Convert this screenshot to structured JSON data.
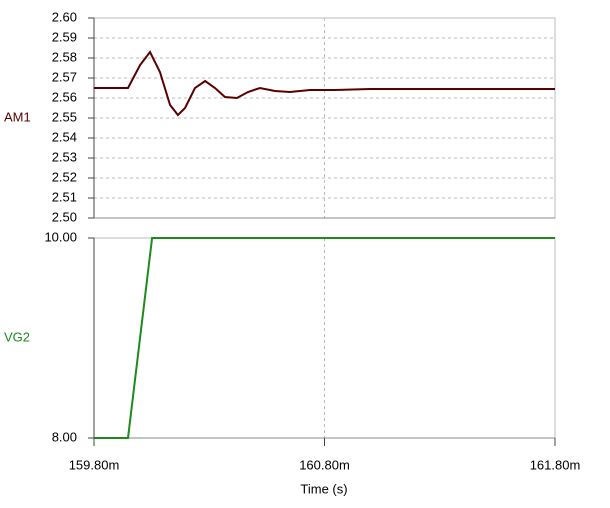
{
  "chart_data": [
    {
      "type": "line",
      "series": [
        {
          "name": "AM1",
          "color": "#5a0000",
          "x": [
            159.8,
            159.9475,
            160.0,
            160.043,
            160.086,
            160.13,
            160.164,
            160.195,
            160.238,
            160.282,
            160.325,
            160.368,
            160.42,
            160.468,
            160.52,
            160.585,
            160.65,
            160.737,
            160.846,
            160.997,
            161.8
          ],
          "values": [
            2.565,
            2.565,
            2.5765,
            2.583,
            2.573,
            2.5565,
            2.5515,
            2.555,
            2.565,
            2.5685,
            2.565,
            2.5605,
            2.56,
            2.563,
            2.565,
            2.5635,
            2.563,
            2.564,
            2.564,
            2.5645,
            2.5645
          ]
        }
      ],
      "xlim": [
        159.8,
        161.8
      ],
      "ylim": [
        2.5,
        2.6
      ],
      "yticks": [
        {
          "value": 2.5,
          "label": "2.50"
        },
        {
          "value": 2.51,
          "label": "2.51"
        },
        {
          "value": 2.52,
          "label": "2.52"
        },
        {
          "value": 2.53,
          "label": "2.53"
        },
        {
          "value": 2.54,
          "label": "2.54"
        },
        {
          "value": 2.55,
          "label": "2.55"
        },
        {
          "value": 2.56,
          "label": "2.56"
        },
        {
          "value": 2.57,
          "label": "2.57"
        },
        {
          "value": 2.58,
          "label": "2.58"
        },
        {
          "value": 2.59,
          "label": "2.59"
        },
        {
          "value": 2.6,
          "label": "2.60"
        }
      ],
      "grid": true
    },
    {
      "type": "line",
      "series": [
        {
          "name": "VG2",
          "color": "#1e8a1e",
          "x": [
            159.8,
            159.9475,
            160.052,
            161.8
          ],
          "values": [
            8,
            8,
            10,
            10
          ]
        }
      ],
      "xlabel": "Time (s)",
      "xlim": [
        159.8,
        161.8
      ],
      "xticks": [
        {
          "value": 159.8,
          "label": "159.80m"
        },
        {
          "value": 160.8,
          "label": "160.80m"
        },
        {
          "value": 161.8,
          "label": "161.80m"
        }
      ],
      "ylim": [
        8,
        10
      ],
      "yticks": [
        {
          "value": 8,
          "label": "8.00"
        },
        {
          "value": 10,
          "label": "10.00"
        }
      ],
      "grid": true
    }
  ]
}
